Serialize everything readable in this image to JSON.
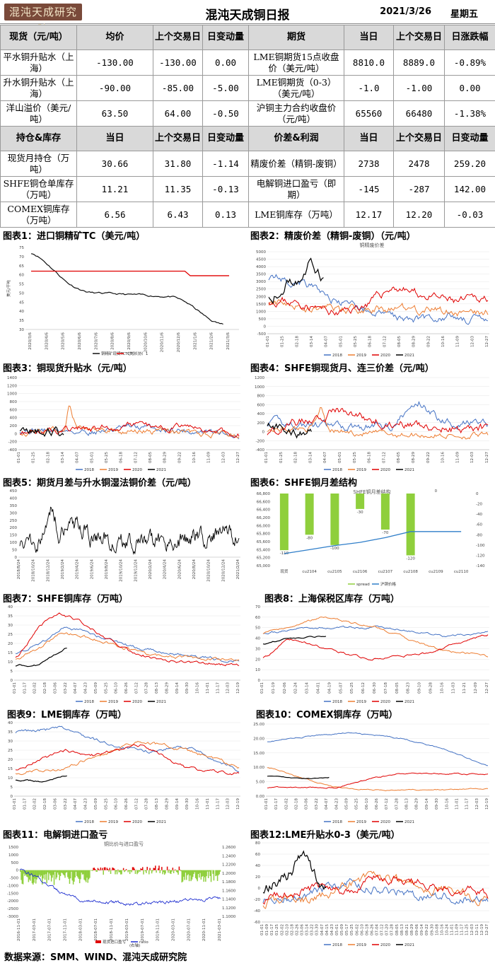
{
  "header": {
    "logo_text": "混沌天成研究院",
    "title": "混沌天成铜日报",
    "date": "2021/3/26",
    "weekday": "星期五"
  },
  "table": {
    "section1_headers": [
      "现货（元/吨）",
      "均价",
      "上个交易日",
      "日变动量",
      "期货",
      "当日",
      "上个交易日",
      "日涨跌幅"
    ],
    "section1_rows": [
      [
        "平水铜升贴水（上海）",
        "-130.00",
        "-130.00",
        "0.00",
        "LME铜期货15点收盘价（美元/吨）",
        "8810.0",
        "8889.0",
        "-0.89%"
      ],
      [
        "升水铜升贴水（上海）",
        "-90.00",
        "-85.00",
        "-5.00",
        "LME铜期货（0-3）（美元/吨）",
        "-1.0",
        "-1.00",
        "0.00"
      ],
      [
        "洋山溢价（美元/吨）",
        "63.50",
        "64.00",
        "-0.50",
        "沪铜主力合约收盘价（元/吨）",
        "65560",
        "66480",
        "-1.38%"
      ]
    ],
    "section2_headers": [
      "持仓&库存",
      "当日",
      "上个交易日",
      "日变动量",
      "价差&利润",
      "当日",
      "上个交易日",
      "日变动量"
    ],
    "section2_rows": [
      [
        "现货月持仓（万吨）",
        "30.66",
        "31.80",
        "-1.14",
        "精废价差（精铜-废铜）",
        "2738",
        "2478",
        "259.20"
      ],
      [
        "SHFE铜仓单库存（万吨）",
        "11.21",
        "11.35",
        "-0.13",
        "电解铜进口盈亏（即期）",
        "-145",
        "-287",
        "142.00"
      ],
      [
        "COMEX铜库存（万吨）",
        "6.56",
        "6.43",
        "0.13",
        "LME铜库存（万吨）",
        "12.17",
        "12.20",
        "-0.03"
      ]
    ]
  },
  "charts": {
    "c1": {
      "label": "图表1：进口铜精矿TC（美元/吨）",
      "ylabel": "美元/干吨",
      "yticks": [
        "75",
        "70",
        "65",
        "60",
        "55",
        "50",
        "45",
        "40",
        "35",
        "30"
      ],
      "xticks": [
        "2020/3/6",
        "2020/4/6",
        "2020/5/6",
        "2020/6/6",
        "2020/7/6",
        "2020/8/6",
        "2020/9/6",
        "2020/10/6",
        "2020/11/6",
        "2020/12/6",
        "2021/1/6",
        "2021/2/6",
        "2021/3/6"
      ],
      "legend": [
        "铜精矿现货TC（美）",
        "TC（长协）1"
      ],
      "colors": [
        "#111111",
        "#e00000"
      ]
    },
    "c2": {
      "label": "图表2：精废价差（精铜-废铜）（元/吨）",
      "subtitle": "铜精废价差",
      "yticks": [
        "5000",
        "4500",
        "4000",
        "3500",
        "3000",
        "2500",
        "2000",
        "1500",
        "1000",
        "500",
        "0",
        "-500"
      ],
      "xticks": [
        "01-01",
        "01-25",
        "02-18",
        "03-14",
        "04-07",
        "05-01",
        "05-25",
        "06-18",
        "07-12",
        "08-05",
        "08-29",
        "09-22",
        "10-16",
        "11-09",
        "12-03",
        "12-27"
      ],
      "legend": [
        "2018",
        "2019",
        "2020",
        "2021"
      ]
    },
    "c3": {
      "label": "图表3：铜现货升贴水（元/吨）",
      "yticks": [
        "1400",
        "1200",
        "1000",
        "800",
        "600",
        "400",
        "200",
        "0",
        "-200",
        "-400"
      ],
      "xticks": [
        "01-01",
        "01-25",
        "02-18",
        "03-14",
        "04-07",
        "05-01",
        "05-25",
        "06-18",
        "07-12",
        "08-05",
        "08-29",
        "09-22",
        "10-16",
        "11-09",
        "12-03",
        "12-27"
      ],
      "legend": [
        "2018",
        "2019",
        "2020",
        "2021"
      ]
    },
    "c4": {
      "label": "图表4：SHFE铜现货月、连三价差（元/吨）",
      "yticks": [
        "1200",
        "1000",
        "800",
        "600",
        "400",
        "200",
        "0",
        "-200",
        "-400"
      ],
      "xticks": [
        "01-01",
        "01-25",
        "02-18",
        "03-14",
        "04-07",
        "05-01",
        "05-25",
        "06-18",
        "07-12",
        "08-05",
        "08-29",
        "09-22",
        "10-16",
        "11-09",
        "12-03",
        "12-27"
      ],
      "legend": [
        "2018",
        "2019",
        "2020",
        "2021"
      ]
    },
    "c5": {
      "label": "图表5：期货月差与升水铜湿法铜价差（元/吨）",
      "yticks": [
        "450",
        "400",
        "350",
        "300",
        "250",
        "200",
        "150",
        "100",
        "50",
        "0"
      ],
      "xticks": [
        "2018/8/24",
        "2018/10/24",
        "2018/12/24",
        "2019/2/24",
        "2019/4/24",
        "2019/6/24",
        "2019/8/24",
        "2019/10/24",
        "2019/12/24",
        "2020/2/24",
        "2020/4/24",
        "2020/6/24",
        "2020/8/24",
        "2020/10/24",
        "2020/12/24",
        "2021/2/24"
      ]
    },
    "c6": {
      "label": "图表6：SHFE铜月差结构",
      "subtitle": "SHFE铜月差结构",
      "categories": [
        "现货",
        "cu2104",
        "cu2105",
        "cu2106",
        "cu2107",
        "cu2108",
        "cu2109",
        "cu2110"
      ],
      "spread": [
        -110,
        -80,
        -100,
        -30,
        -70,
        -120,
        0
      ],
      "spread_labels": [
        "-110",
        "-80",
        "-100",
        "-30",
        "-70",
        "-120",
        "0"
      ],
      "yticks_left": [
        "66,800",
        "66,600",
        "66,400",
        "66,200",
        "66,000",
        "65,800",
        "65,600",
        "65,400",
        "65,200",
        "65,000"
      ],
      "yticks_right": [
        "0",
        "-20",
        "-40",
        "-60",
        "-80",
        "-100",
        "-120",
        "-140"
      ],
      "legend": [
        "spread",
        "沪铜价格"
      ],
      "colors": [
        "#8fcf3c",
        "#2f7ec9"
      ]
    },
    "c7": {
      "label": "图表7：SHFE铜库存（万吨）",
      "yticks": [
        "40",
        "35",
        "30",
        "25",
        "20",
        "15",
        "10",
        "5",
        "0"
      ],
      "xticks": [
        "01-01",
        "01-17",
        "02-02",
        "02-18",
        "03-06",
        "03-22",
        "04-07",
        "04-23",
        "05-09",
        "05-25",
        "06-10",
        "06-26",
        "07-12",
        "07-28",
        "08-13",
        "08-29",
        "09-14",
        "09-30",
        "10-16",
        "11-01",
        "11-17",
        "12-03",
        "12-19"
      ],
      "legend": [
        "2018",
        "2019",
        "2020",
        "2021"
      ]
    },
    "c8": {
      "label": "图表8：上海保税区库存（万吨）",
      "yticks": [
        "70",
        "60",
        "50",
        "40",
        "30",
        "20",
        "10",
        "0"
      ],
      "xticks": [
        "01-01",
        "01-19",
        "02-06",
        "02-24",
        "03-14",
        "04-01",
        "04-19",
        "05-07",
        "05-25",
        "06-12",
        "06-30",
        "07-18",
        "08-05",
        "08-23",
        "09-10",
        "09-28",
        "10-16",
        "11-03",
        "11-21",
        "12-09",
        "12-27"
      ],
      "legend": [
        "2018",
        "2019",
        "2020",
        "2021"
      ]
    },
    "c9": {
      "label": "图表9：LME铜库存（万吨）",
      "yticks": [
        "40",
        "35",
        "30",
        "25",
        "20",
        "15",
        "10",
        "5",
        "0"
      ],
      "xticks": [
        "01-01",
        "01-17",
        "02-02",
        "02-18",
        "03-06",
        "03-22",
        "04-07",
        "04-23",
        "05-09",
        "05-25",
        "06-10",
        "06-26",
        "07-12",
        "07-28",
        "08-13",
        "08-29",
        "09-14",
        "09-30",
        "10-16",
        "11-01",
        "11-17",
        "12-03",
        "12-19"
      ],
      "legend": [
        "2018",
        "2019",
        "2020",
        "2021"
      ]
    },
    "c10": {
      "label": "图表10：COMEX铜库存（万吨）",
      "yticks": [
        "25.00",
        "20.00",
        "15.00",
        "10.00",
        "5.00",
        "0.00"
      ],
      "xticks": [
        "01-01",
        "01-17",
        "02-02",
        "02-18",
        "03-06",
        "03-22",
        "04-07",
        "04-23",
        "05-09",
        "05-25",
        "06-10",
        "06-26",
        "07-12",
        "07-28",
        "08-13",
        "08-29",
        "09-14",
        "09-30",
        "10-16",
        "11-01",
        "11-17",
        "12-03",
        "12-19"
      ],
      "legend": [
        "2018",
        "2019",
        "2020",
        "2021"
      ]
    },
    "c11": {
      "label": "图表11：电解铜进口盈亏",
      "subtitle": "铜比价与进口盈亏",
      "yticks_left": [
        "1500",
        "1000",
        "500",
        "0",
        "-500",
        "-1000",
        "-1500",
        "-2000",
        "-2500",
        "-3000"
      ],
      "yticks_right": [
        "1.2600",
        "1.2400",
        "1.2200",
        "1.2000",
        "1.1800",
        "1.1600",
        "1.1400",
        "1.1200",
        "1.1000"
      ],
      "legend": [
        "现货进口盈亏",
        "ratio",
        "(右轴)"
      ],
      "colors": [
        "#e00000",
        "#8fcf3c",
        "#1f2fd0"
      ]
    },
    "c12": {
      "label": "图表12:LME升贴水0-3（美元/吨）",
      "yticks": [
        "80",
        "60",
        "40",
        "20",
        "0",
        "-20",
        "-40",
        "-60"
      ],
      "xticks": [
        "01-01",
        "01-09",
        "01-17",
        "01-25",
        "02-02",
        "02-10",
        "02-18",
        "02-26",
        "03-06",
        "03-14",
        "03-22",
        "03-30",
        "04-07",
        "04-15",
        "04-23",
        "05-01",
        "05-09",
        "05-17",
        "05-25",
        "06-02",
        "06-10",
        "06-18",
        "06-26",
        "07-04",
        "07-12",
        "07-20",
        "07-28",
        "08-05",
        "08-13",
        "08-21",
        "08-29",
        "09-06",
        "09-14",
        "09-22",
        "09-30",
        "10-08",
        "10-16",
        "10-24",
        "11-01",
        "11-09",
        "11-17",
        "11-25",
        "12-03",
        "12-11",
        "12-19",
        "12-27"
      ],
      "legend": [
        "2018",
        "2019",
        "2020",
        "2021"
      ]
    }
  },
  "series_colors": {
    "2018": "#4472c4",
    "2019": "#ed7d31",
    "2020": "#e00000",
    "2021": "#000000"
  },
  "footer": "数据来源：SMM、WIND、混沌天成研究院"
}
